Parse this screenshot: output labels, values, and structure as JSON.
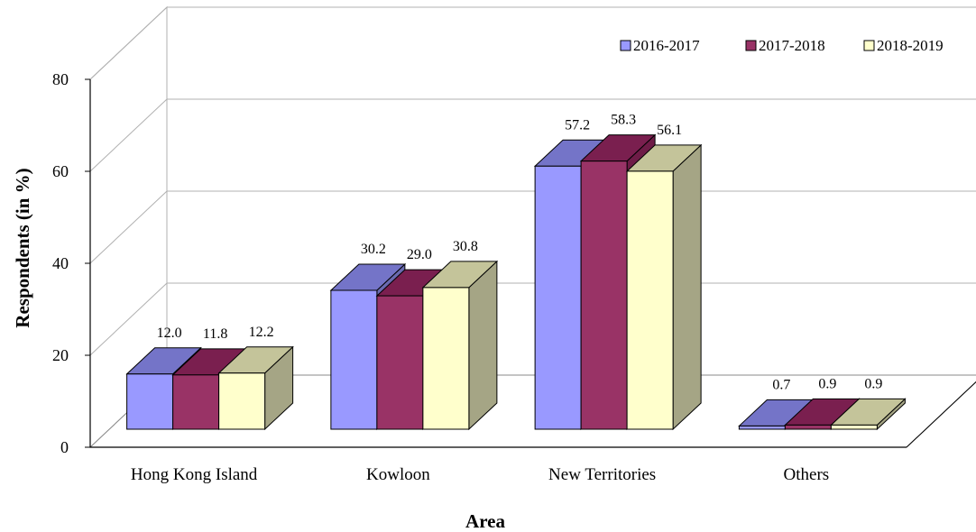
{
  "chart_data": {
    "type": "bar",
    "title": "",
    "xlabel": "Area",
    "ylabel": "Respondents (in %)",
    "ylim": [
      0,
      80
    ],
    "yticks": [
      "0",
      "20",
      "40",
      "60",
      "80"
    ],
    "categories": [
      "Hong Kong Island",
      "Kowloon",
      "New Territories",
      "Others"
    ],
    "series": [
      {
        "name": "2016-2017",
        "values": [
          12.0,
          30.2,
          57.2,
          0.7
        ],
        "labels": [
          "12.0",
          "30.2",
          "57.2",
          "0.7"
        ],
        "color": "#9999ff",
        "top_color": "#7474c8",
        "side_color": "#6a6ab0"
      },
      {
        "name": "2017-2018",
        "values": [
          11.8,
          29.0,
          58.3,
          0.9
        ],
        "labels": [
          "11.8",
          "29.0",
          "58.3",
          "0.9"
        ],
        "color": "#993366",
        "top_color": "#7a1f4f",
        "side_color": "#6e1c47"
      },
      {
        "name": "2018-2019",
        "values": [
          12.2,
          30.8,
          56.1,
          0.9
        ],
        "labels": [
          "12.2",
          "30.8",
          "56.1",
          "0.9"
        ],
        "color": "#ffffcc",
        "top_color": "#c4c49a",
        "side_color": "#a5a585"
      }
    ],
    "legend_position": "top-right",
    "grid": true,
    "style": "3d-clustered-column"
  }
}
